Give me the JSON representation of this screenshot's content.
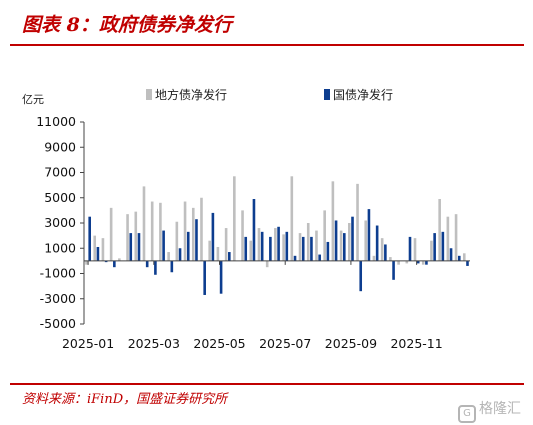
{
  "header": {
    "title": "图表 8：政府债券净发行"
  },
  "footer": {
    "source": "资料来源：iFinD，国盛证券研究所"
  },
  "watermark": {
    "icon": "gelonghui-logo-icon",
    "text": "格隆汇"
  },
  "colors": {
    "local": "#bfbfbf",
    "national": "#0d3d8f",
    "accent": "#c00000"
  },
  "chart_data": {
    "type": "bar",
    "ylabel": "亿元",
    "ylim": [
      -5000,
      11000
    ],
    "yticks": [
      11000,
      9000,
      7000,
      5000,
      3000,
      1000,
      -1000,
      -3000,
      -5000
    ],
    "xtick_labels": [
      "2025-01",
      "2025-03",
      "2025-05",
      "2025-07",
      "2025-09",
      "2025-11"
    ],
    "xtick_week_index": [
      0,
      8,
      16,
      24,
      32,
      40
    ],
    "legend_position": "top",
    "grid": false,
    "series": [
      {
        "name": "地方债净发行",
        "values": [
          -300,
          2000,
          1800,
          4200,
          200,
          3700,
          3900,
          5900,
          4700,
          4600,
          700,
          3100,
          4700,
          4200,
          5000,
          1600,
          1100,
          2600,
          6700,
          4000,
          1600,
          2600,
          -500,
          2600,
          2100,
          6700,
          2200,
          3000,
          2400,
          4000,
          6300,
          2400,
          3000,
          6100,
          3200,
          400,
          1800,
          300,
          -300,
          -200,
          1800,
          -300,
          1600,
          4900,
          3500,
          3700,
          600
        ]
      },
      {
        "name": "国债净发行",
        "values": [
          3500,
          1100,
          -100,
          -500,
          0,
          2200,
          2200,
          -500,
          -1100,
          2400,
          -900,
          1000,
          2300,
          3300,
          -2700,
          3800,
          -2600,
          700,
          0,
          1900,
          4900,
          2300,
          1900,
          2700,
          2300,
          400,
          1900,
          1900,
          500,
          1500,
          3200,
          2200,
          3500,
          -2400,
          4100,
          2800,
          1300,
          -1500,
          0,
          1900,
          -200,
          -300,
          2200,
          2300,
          1000,
          400,
          -400
        ]
      }
    ]
  }
}
